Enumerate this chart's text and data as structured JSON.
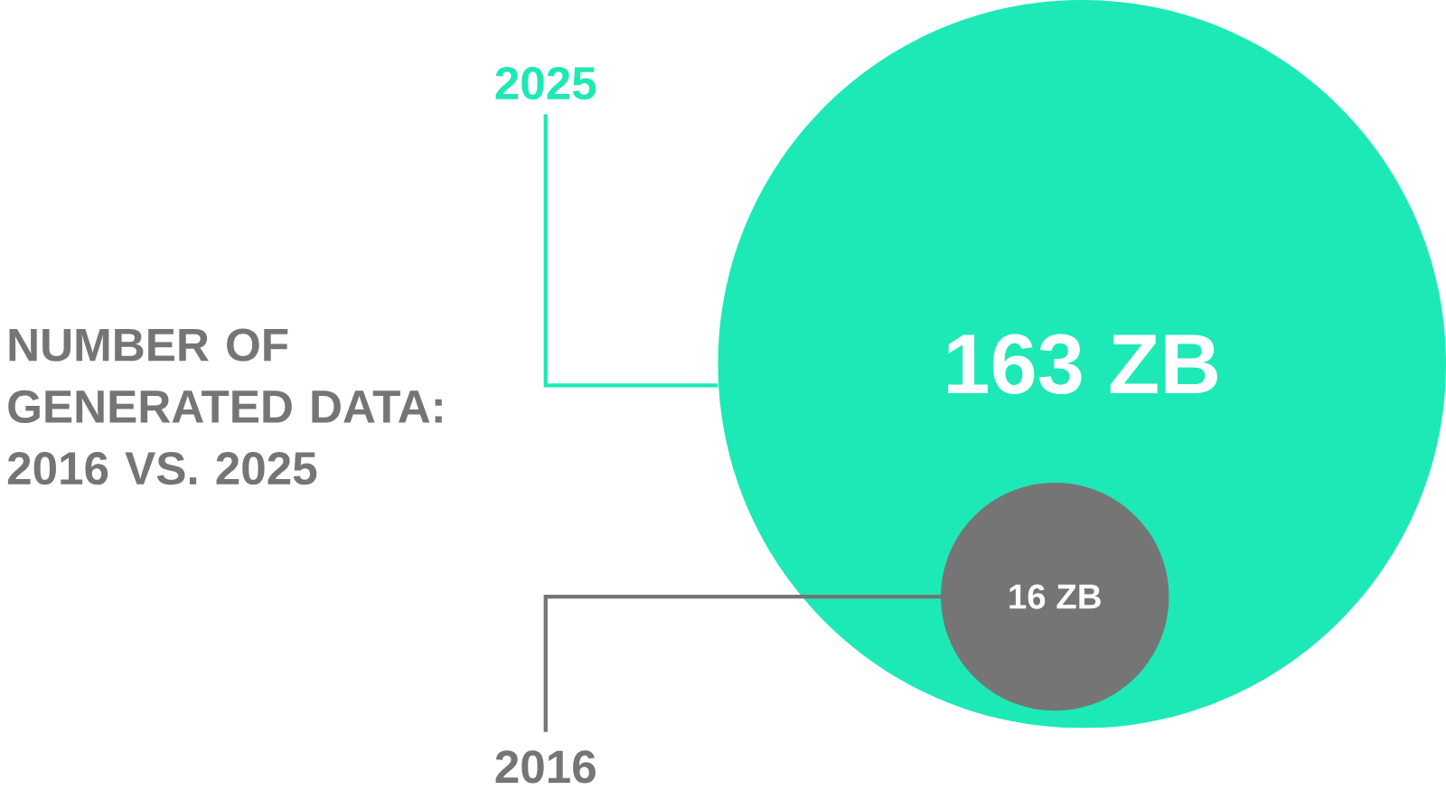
{
  "chart_data": {
    "type": "other",
    "title": "NUMBER OF GENERATED DATA: 2016 VS. 2025",
    "categories": [
      "2025",
      "2016"
    ],
    "values": [
      163,
      16
    ],
    "value_labels": [
      "163 ZB",
      "16 ZB"
    ],
    "colors": [
      "#1de9b6",
      "#757575"
    ]
  }
}
